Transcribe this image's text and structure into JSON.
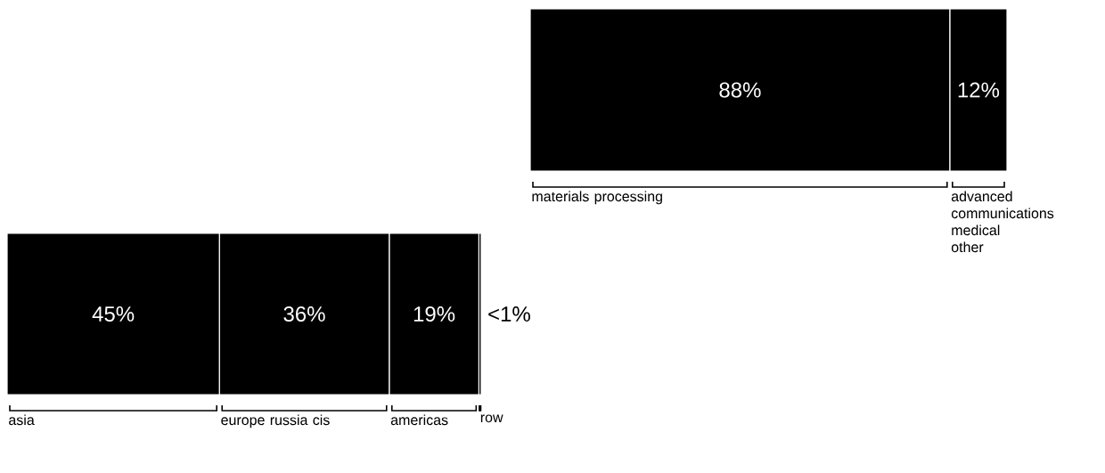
{
  "chart_data": [
    {
      "type": "bar",
      "orientation": "horizontal",
      "stacked": true,
      "categories": [
        null
      ],
      "series": [
        {
          "name": "materials processing",
          "color": "#000000",
          "values": [
            88
          ],
          "value_labels": [
            "88%"
          ]
        },
        {
          "name": "advanced communications medical other",
          "color": "#000000",
          "values": [
            12
          ],
          "value_labels": [
            "12%"
          ]
        }
      ]
    },
    {
      "type": "bar",
      "orientation": "horizontal",
      "stacked": true,
      "categories": [
        null
      ],
      "series": [
        {
          "name": "asia",
          "color": "#000000",
          "values": [
            45
          ],
          "value_labels": [
            "45%"
          ]
        },
        {
          "name": "europe russia cis",
          "color": "#000000",
          "values": [
            36
          ],
          "value_labels": [
            "36%"
          ]
        },
        {
          "name": "americas",
          "color": "#000000",
          "values": [
            19
          ],
          "value_labels": [
            "19%"
          ]
        },
        {
          "name": "row",
          "color": "#000000",
          "values": [
            0.5
          ],
          "value_labels": [
            "<1%"
          ]
        }
      ]
    }
  ]
}
